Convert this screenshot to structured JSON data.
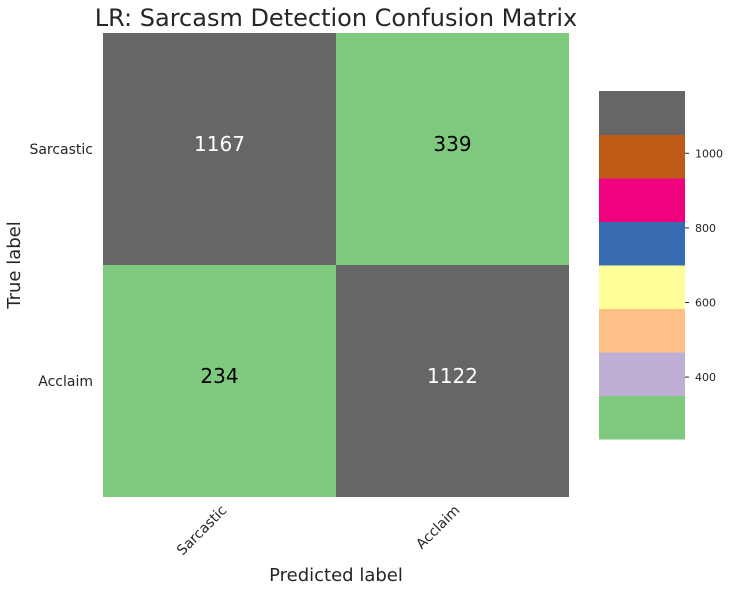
{
  "chart_data": {
    "type": "heatmap",
    "title": "LR: Sarcasm Detection Confusion Matrix",
    "xlabel": "Predicted label",
    "ylabel": "True label",
    "x_categories": [
      "Sarcastic",
      "Acclaim"
    ],
    "y_categories": [
      "Sarcastic",
      "Acclaim"
    ],
    "values": [
      [
        1167,
        339
      ],
      [
        234,
        1122
      ]
    ],
    "colormap": "Accent",
    "colorbar": {
      "range": [
        234,
        1167
      ],
      "ticks": [
        400,
        600,
        800,
        1000
      ],
      "bands": [
        "#7fc97f",
        "#beaed4",
        "#fdc086",
        "#ffff99",
        "#386cb0",
        "#f0027f",
        "#bf5b17",
        "#666666"
      ]
    },
    "text_colors": {
      "dark_cell": "#ffffff",
      "light_cell": "#000000"
    }
  }
}
